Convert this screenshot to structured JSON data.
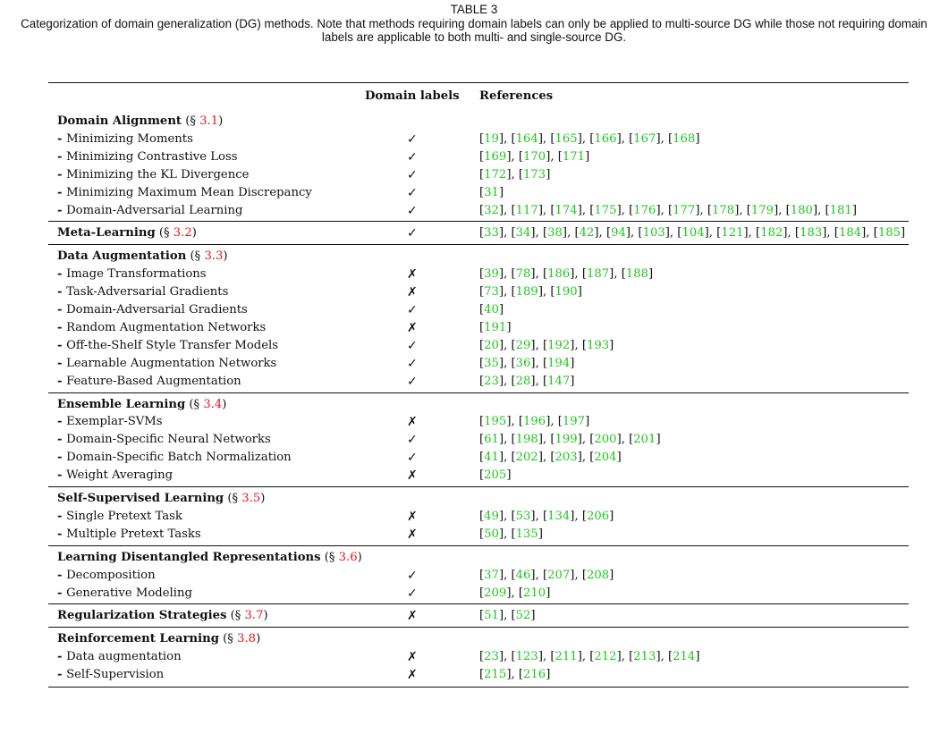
{
  "table_number": "TABLE 3",
  "caption": "Categorization of domain generalization (DG) methods. Note that methods requiring domain labels can only be applied to multi-source DG while those not requiring domain labels are applicable to both multi- and single-source DG.",
  "header": {
    "col_domain_labels": "Domain labels",
    "col_references": "References"
  },
  "groups": [
    {
      "title": "Domain Alignment",
      "section": "3.1",
      "rows": [
        {
          "name": "Minimizing Moments",
          "domain_labels": "✓",
          "refs": [
            "19",
            "164",
            "165",
            "166",
            "167",
            "168"
          ]
        },
        {
          "name": "Minimizing Contrastive Loss",
          "domain_labels": "✓",
          "refs": [
            "169",
            "170",
            "171"
          ]
        },
        {
          "name": "Minimizing the KL Divergence",
          "domain_labels": "✓",
          "refs": [
            "172",
            "173"
          ]
        },
        {
          "name": "Minimizing Maximum Mean Discrepancy",
          "domain_labels": "✓",
          "refs": [
            "31"
          ]
        },
        {
          "name": "Domain-Adversarial Learning",
          "domain_labels": "✓",
          "refs": [
            "32",
            "117",
            "174",
            "175",
            "176",
            "177",
            "178",
            "179",
            "180",
            "181"
          ]
        }
      ]
    },
    {
      "title": "Meta-Learning",
      "section": "3.2",
      "domain_labels": "✓",
      "refs": [
        "33",
        "34",
        "38",
        "42",
        "94",
        "103",
        "104",
        "121",
        "182",
        "183",
        "184",
        "185"
      ],
      "rows": []
    },
    {
      "title": "Data Augmentation",
      "section": "3.3",
      "rows": [
        {
          "name": "Image Transformations",
          "domain_labels": "✗",
          "refs": [
            "39",
            "78",
            "186",
            "187",
            "188"
          ]
        },
        {
          "name": "Task-Adversarial Gradients",
          "domain_labels": "✗",
          "refs": [
            "73",
            "189",
            "190"
          ]
        },
        {
          "name": "Domain-Adversarial Gradients",
          "domain_labels": "✓",
          "refs": [
            "40"
          ]
        },
        {
          "name": "Random Augmentation Networks",
          "domain_labels": "✗",
          "refs": [
            "191"
          ]
        },
        {
          "name": "Off-the-Shelf Style Transfer Models",
          "domain_labels": "✓",
          "refs": [
            "20",
            "29",
            "192",
            "193"
          ]
        },
        {
          "name": "Learnable Augmentation Networks",
          "domain_labels": "✓",
          "refs": [
            "35",
            "36",
            "194"
          ]
        },
        {
          "name": "Feature-Based Augmentation",
          "domain_labels": "✓",
          "refs": [
            "23",
            "28",
            "147"
          ]
        }
      ]
    },
    {
      "title": "Ensemble Learning",
      "section": "3.4",
      "rows": [
        {
          "name": "Exemplar-SVMs",
          "domain_labels": "✗",
          "refs": [
            "195",
            "196",
            "197"
          ]
        },
        {
          "name": "Domain-Specific Neural Networks",
          "domain_labels": "✓",
          "refs": [
            "61",
            "198",
            "199",
            "200",
            "201"
          ]
        },
        {
          "name": "Domain-Specific Batch Normalization",
          "domain_labels": "✓",
          "refs": [
            "41",
            "202",
            "203",
            "204"
          ]
        },
        {
          "name": "Weight Averaging",
          "domain_labels": "✗",
          "refs": [
            "205"
          ]
        }
      ]
    },
    {
      "title": "Self-Supervised Learning",
      "section": "3.5",
      "rows": [
        {
          "name": "Single Pretext Task",
          "domain_labels": "✗",
          "refs": [
            "49",
            "53",
            "134",
            "206"
          ]
        },
        {
          "name": "Multiple Pretext Tasks",
          "domain_labels": "✗",
          "refs": [
            "50",
            "135"
          ]
        }
      ]
    },
    {
      "title": "Learning Disentangled Representations",
      "section": "3.6",
      "rows": [
        {
          "name": "Decomposition",
          "domain_labels": "✓",
          "refs": [
            "37",
            "46",
            "207",
            "208"
          ]
        },
        {
          "name": "Generative Modeling",
          "domain_labels": "✓",
          "refs": [
            "209",
            "210"
          ]
        }
      ]
    },
    {
      "title": "Regularization Strategies",
      "section": "3.7",
      "domain_labels": "✗",
      "refs": [
        "51",
        "52"
      ],
      "rows": []
    },
    {
      "title": "Reinforcement Learning",
      "section": "3.8",
      "rows": [
        {
          "name": "Data augmentation",
          "domain_labels": "✗",
          "refs": [
            "23",
            "123",
            "211",
            "212",
            "213",
            "214"
          ]
        },
        {
          "name": "Self-Supervision",
          "domain_labels": "✗",
          "refs": [
            "215",
            "216"
          ]
        }
      ]
    }
  ]
}
